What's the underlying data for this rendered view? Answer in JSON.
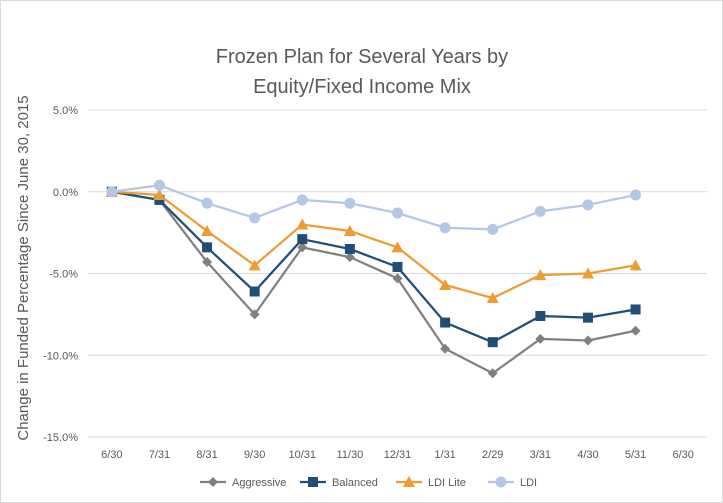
{
  "chart_data": {
    "type": "line",
    "title_lines": [
      "Frozen Plan for Several Years by",
      "Equity/Fixed Income Mix"
    ],
    "xlabel": "",
    "ylabel": "Change in Funded Percentage Since June 30, 2015",
    "ylim": [
      -15.0,
      5.0
    ],
    "yticks": [
      5.0,
      0.0,
      -5.0,
      -10.0,
      -15.0
    ],
    "ytick_labels": [
      "5.0%",
      "0.0%",
      "-5.0%",
      "-10.0%",
      "-15.0%"
    ],
    "categories": [
      "6/30",
      "7/31",
      "8/31",
      "9/30",
      "10/31",
      "11/30",
      "12/31",
      "1/31",
      "2/29",
      "3/31",
      "4/30",
      "5/31",
      "6/30"
    ],
    "grid": "horizontal",
    "legend_position": "bottom",
    "series": [
      {
        "name": "Aggressive",
        "color": "#808080",
        "marker": "diamond",
        "values": [
          0.0,
          -0.5,
          -4.3,
          -7.5,
          -3.4,
          -4.0,
          -5.3,
          -9.6,
          -11.1,
          -9.0,
          -9.1,
          -8.5,
          null
        ]
      },
      {
        "name": "Balanced",
        "color": "#1f4e79",
        "marker": "square",
        "values": [
          0.0,
          -0.5,
          -3.4,
          -6.1,
          -2.9,
          -3.5,
          -4.6,
          -8.0,
          -9.2,
          -7.6,
          -7.7,
          -7.2,
          null
        ]
      },
      {
        "name": "LDI Lite",
        "color": "#ed9b33",
        "marker": "triangle",
        "values": [
          0.0,
          -0.2,
          -2.4,
          -4.5,
          -2.0,
          -2.4,
          -3.4,
          -5.7,
          -6.5,
          -5.1,
          -5.0,
          -4.5,
          null
        ]
      },
      {
        "name": "LDI",
        "color": "#b4c7e7",
        "marker": "circle",
        "values": [
          0.0,
          0.4,
          -0.7,
          -1.6,
          -0.5,
          -0.7,
          -1.3,
          -2.2,
          -2.3,
          -1.2,
          -0.8,
          -0.2,
          null
        ]
      }
    ]
  }
}
